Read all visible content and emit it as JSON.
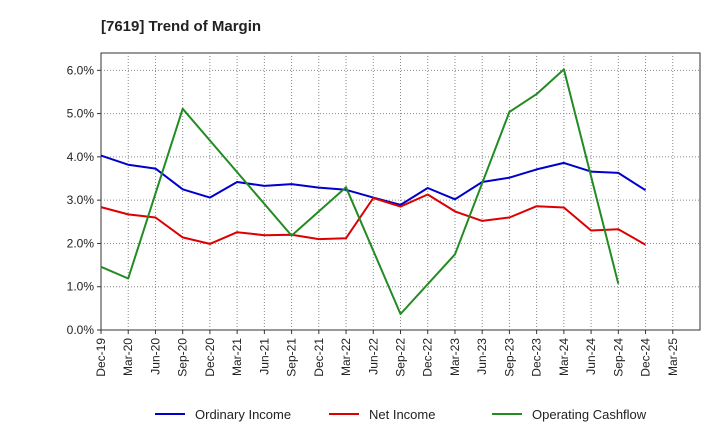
{
  "chart_data": {
    "type": "line",
    "title": "[7619]  Trend of Margin",
    "xlabel": "",
    "ylabel": "",
    "ylim": [
      0,
      6.4
    ],
    "y_ticks": [
      "0.0%",
      "1.0%",
      "2.0%",
      "3.0%",
      "4.0%",
      "5.0%",
      "6.0%"
    ],
    "y_tick_values": [
      0,
      1,
      2,
      3,
      4,
      5,
      6
    ],
    "categories": [
      "Dec-19",
      "Mar-20",
      "Jun-20",
      "Sep-20",
      "Dec-20",
      "Mar-21",
      "Jun-21",
      "Sep-21",
      "Dec-21",
      "Mar-22",
      "Jun-22",
      "Sep-22",
      "Dec-22",
      "Mar-23",
      "Jun-23",
      "Sep-23",
      "Dec-23",
      "Mar-24",
      "Jun-24",
      "Sep-24",
      "Dec-24",
      "Mar-25"
    ],
    "grid": true,
    "legend_position": "bottom",
    "series": [
      {
        "name": "Ordinary Income",
        "color": "#0000cc",
        "values": [
          4.03,
          3.82,
          3.73,
          3.25,
          3.06,
          3.42,
          3.33,
          3.37,
          3.29,
          3.24,
          3.06,
          2.89,
          3.28,
          3.02,
          3.42,
          3.52,
          3.71,
          3.86,
          3.66,
          3.63,
          3.23,
          null
        ]
      },
      {
        "name": "Net Income",
        "color": "#dd0000",
        "values": [
          2.84,
          2.67,
          2.6,
          2.14,
          1.99,
          2.26,
          2.19,
          2.2,
          2.1,
          2.12,
          3.05,
          2.85,
          3.13,
          2.74,
          2.52,
          2.6,
          2.86,
          2.83,
          2.3,
          2.33,
          1.97,
          null
        ]
      },
      {
        "name": "Operating Cashflow",
        "color": "#228b22",
        "values": [
          1.46,
          1.19,
          null,
          5.11,
          null,
          null,
          null,
          2.18,
          null,
          3.3,
          null,
          0.37,
          null,
          1.75,
          null,
          5.04,
          5.45,
          6.02,
          null,
          1.07,
          null,
          null
        ]
      }
    ]
  }
}
